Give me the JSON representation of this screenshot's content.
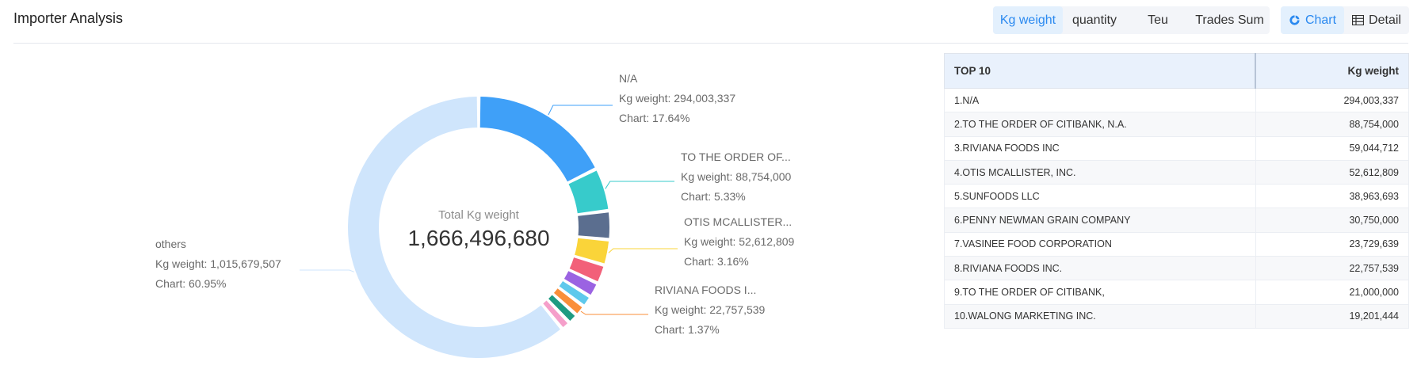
{
  "header": {
    "title": "Importer Analysis",
    "metric_tabs": [
      {
        "label": "Kg weight",
        "active": true
      },
      {
        "label": "quantity",
        "active": false
      },
      {
        "label": "Teu",
        "active": false
      },
      {
        "label": "Trades Sum",
        "active": false
      }
    ],
    "view_tabs": [
      {
        "label": "Chart",
        "icon": "donut-chart-icon",
        "active": true
      },
      {
        "label": "Detail",
        "icon": "table-icon",
        "active": false
      }
    ]
  },
  "colors": {
    "accent": "#2a89f0",
    "active_tab_bg": "#e3f0fd",
    "table_header_bg": "#e9f1fc"
  },
  "chart_data": {
    "type": "pie",
    "variant": "donut",
    "center_label": "Total Kg weight",
    "total_text": "1,666,496,680",
    "total": 1666496680,
    "slices": [
      {
        "name": "N/A",
        "value": 294003337,
        "color": "#3fa0f8",
        "label": {
          "name": "N/A",
          "line1": "Kg weight: 294,003,337",
          "line2": "Chart: 17.64%"
        }
      },
      {
        "name": "TO THE ORDER OF CITIBANK, N.A.",
        "value": 88754000,
        "color": "#37cbcb",
        "label": {
          "name": "TO THE ORDER OF...",
          "line1": "Kg weight: 88,754,000",
          "line2": "Chart: 5.33%"
        }
      },
      {
        "name": "RIVIANA FOODS INC",
        "value": 59044712,
        "color": "#5b6e8f"
      },
      {
        "name": "OTIS MCALLISTER, INC.",
        "value": 52612809,
        "color": "#fad439",
        "label": {
          "name": "OTIS MCALLISTER...",
          "line1": "Kg weight: 52,612,809",
          "line2": "Chart: 3.16%"
        }
      },
      {
        "name": "SUNFOODS LLC",
        "value": 38963693,
        "color": "#f26079"
      },
      {
        "name": "PENNY NEWMAN GRAIN COMPANY",
        "value": 30750000,
        "color": "#9b63e2"
      },
      {
        "name": "VASINEE FOOD CORPORATION",
        "value": 23729639,
        "color": "#5fc9ec"
      },
      {
        "name": "RIVIANA FOODS INC.",
        "value": 22757539,
        "color": "#fa8f3a",
        "label": {
          "name": "RIVIANA FOODS I...",
          "line1": "Kg weight: 22,757,539",
          "line2": "Chart: 1.37%"
        }
      },
      {
        "name": "TO THE ORDER OF CITIBANK,",
        "value": 21000000,
        "color": "#1e9b82"
      },
      {
        "name": "WALONG MARKETING INC.",
        "value": 19201444,
        "color": "#f59fca"
      },
      {
        "name": "others",
        "value": 1015679507,
        "color": "#cfe5fc",
        "label": {
          "name": "others",
          "line1": "Kg weight: 1,015,679,507",
          "line2": "Chart: 60.95%"
        }
      }
    ]
  },
  "table": {
    "headers": [
      "TOP 10",
      "Kg weight"
    ],
    "rows": [
      {
        "name": "1.N/A",
        "value": "294,003,337"
      },
      {
        "name": "2.TO THE ORDER OF CITIBANK, N.A.",
        "value": "88,754,000"
      },
      {
        "name": "3.RIVIANA FOODS INC",
        "value": "59,044,712"
      },
      {
        "name": "4.OTIS MCALLISTER, INC.",
        "value": "52,612,809"
      },
      {
        "name": "5.SUNFOODS LLC",
        "value": "38,963,693"
      },
      {
        "name": "6.PENNY NEWMAN GRAIN COMPANY",
        "value": "30,750,000"
      },
      {
        "name": "7.VASINEE FOOD CORPORATION",
        "value": "23,729,639"
      },
      {
        "name": "8.RIVIANA FOODS INC.",
        "value": "22,757,539"
      },
      {
        "name": "9.TO THE ORDER OF CITIBANK,",
        "value": "21,000,000"
      },
      {
        "name": "10.WALONG MARKETING INC.",
        "value": "19,201,444"
      }
    ]
  }
}
